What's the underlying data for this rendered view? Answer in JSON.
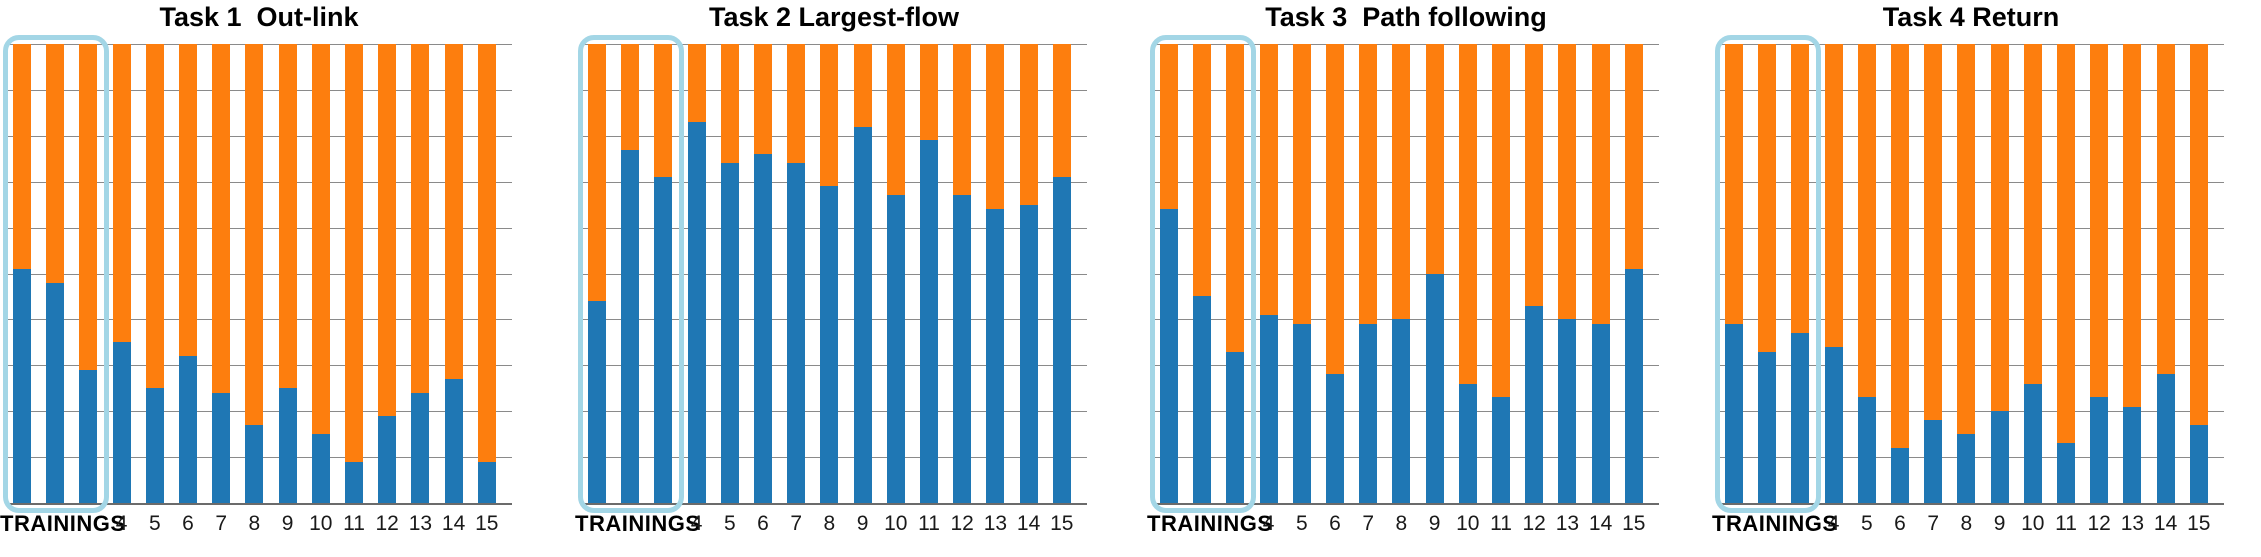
{
  "labels": {
    "trainings": "TRAININGS"
  },
  "colors": {
    "blue": "#1F77B4",
    "orange": "#FD7E0E",
    "gridline": "#8A8A8A",
    "axis": "#6B6B6B",
    "highlight_border": "#A3D6E6",
    "title_text": "#000000",
    "tick_text": "#1A1A1A",
    "background": "#FFFFFF"
  },
  "chart_data": [
    {
      "type": "bar",
      "stacked": true,
      "title": "Task 1  Out-link",
      "x_group_label": "TRAININGS",
      "x_tick_labels": [
        "",
        "",
        "",
        "4",
        "5",
        "6",
        "7",
        "8",
        "9",
        "10",
        "11",
        "12",
        "13",
        "14",
        "15"
      ],
      "ylim": [
        0,
        1
      ],
      "gridline_interval": 0.1,
      "grid": true,
      "legend": false,
      "highlighted_bars": "first 3 bars (TRAININGS group, light-blue rounded box)",
      "series": [
        {
          "name": "blue",
          "color": "#1F77B4",
          "values": [
            0.51,
            0.48,
            0.29,
            0.35,
            0.25,
            0.32,
            0.24,
            0.17,
            0.25,
            0.15,
            0.09,
            0.19,
            0.24,
            0.27,
            0.09
          ]
        },
        {
          "name": "orange",
          "color": "#FD7E0E",
          "values": [
            0.49,
            0.52,
            0.71,
            0.65,
            0.75,
            0.68,
            0.76,
            0.83,
            0.75,
            0.85,
            0.91,
            0.81,
            0.76,
            0.73,
            0.91
          ]
        }
      ]
    },
    {
      "type": "bar",
      "stacked": true,
      "title": "Task 2 Largest-flow",
      "x_group_label": "TRAININGS",
      "x_tick_labels": [
        "",
        "",
        "",
        "4",
        "5",
        "6",
        "7",
        "8",
        "9",
        "10",
        "11",
        "12",
        "13",
        "14",
        "15"
      ],
      "ylim": [
        0,
        1
      ],
      "gridline_interval": 0.1,
      "grid": true,
      "legend": false,
      "highlighted_bars": "first 3 bars (TRAININGS group, light-blue rounded box)",
      "series": [
        {
          "name": "blue",
          "color": "#1F77B4",
          "values": [
            0.44,
            0.77,
            0.71,
            0.83,
            0.74,
            0.76,
            0.74,
            0.69,
            0.82,
            0.67,
            0.79,
            0.67,
            0.64,
            0.65,
            0.71
          ]
        },
        {
          "name": "orange",
          "color": "#FD7E0E",
          "values": [
            0.56,
            0.23,
            0.29,
            0.17,
            0.26,
            0.24,
            0.26,
            0.31,
            0.18,
            0.33,
            0.21,
            0.33,
            0.36,
            0.35,
            0.29
          ]
        }
      ]
    },
    {
      "type": "bar",
      "stacked": true,
      "title": "Task 3  Path following",
      "x_group_label": "TRAININGS",
      "x_tick_labels": [
        "",
        "",
        "",
        "4",
        "5",
        "6",
        "7",
        "8",
        "9",
        "10",
        "11",
        "12",
        "13",
        "14",
        "15"
      ],
      "ylim": [
        0,
        1
      ],
      "gridline_interval": 0.1,
      "grid": true,
      "legend": false,
      "highlighted_bars": "first 3 bars (TRAININGS group, light-blue rounded box)",
      "series": [
        {
          "name": "blue",
          "color": "#1F77B4",
          "values": [
            0.64,
            0.45,
            0.33,
            0.41,
            0.39,
            0.28,
            0.39,
            0.4,
            0.5,
            0.26,
            0.23,
            0.43,
            0.4,
            0.39,
            0.51
          ]
        },
        {
          "name": "orange",
          "color": "#FD7E0E",
          "values": [
            0.36,
            0.55,
            0.67,
            0.59,
            0.61,
            0.72,
            0.61,
            0.6,
            0.5,
            0.74,
            0.77,
            0.57,
            0.6,
            0.61,
            0.49
          ]
        }
      ]
    },
    {
      "type": "bar",
      "stacked": true,
      "title": "Task 4 Return",
      "x_group_label": "TRAININGS",
      "x_tick_labels": [
        "",
        "",
        "",
        "4",
        "5",
        "6",
        "7",
        "8",
        "9",
        "10",
        "11",
        "12",
        "13",
        "14",
        "15"
      ],
      "ylim": [
        0,
        1
      ],
      "gridline_interval": 0.1,
      "grid": true,
      "legend": false,
      "highlighted_bars": "first 3 bars (TRAININGS group, light-blue rounded box)",
      "series": [
        {
          "name": "blue",
          "color": "#1F77B4",
          "values": [
            0.39,
            0.33,
            0.37,
            0.34,
            0.23,
            0.12,
            0.18,
            0.15,
            0.2,
            0.26,
            0.13,
            0.23,
            0.21,
            0.28,
            0.17
          ]
        },
        {
          "name": "orange",
          "color": "#FD7E0E",
          "values": [
            0.61,
            0.67,
            0.63,
            0.66,
            0.77,
            0.88,
            0.82,
            0.85,
            0.8,
            0.74,
            0.87,
            0.77,
            0.79,
            0.72,
            0.83
          ]
        }
      ]
    }
  ]
}
